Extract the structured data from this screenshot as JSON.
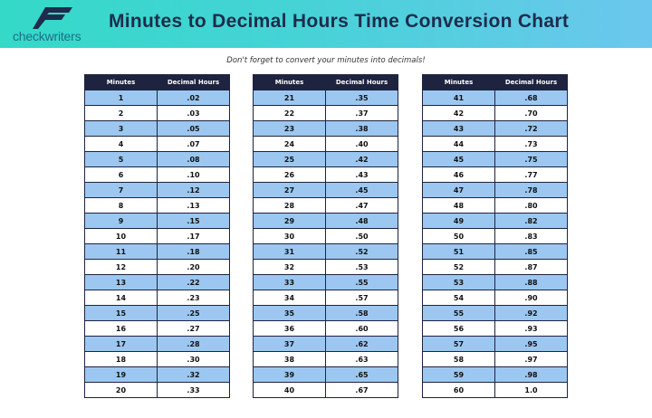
{
  "header": {
    "logo_text": "checkwriters",
    "title": "Minutes to Decimal Hours Time Conversion Chart",
    "colors": {
      "gradient_start": "#34d9c8",
      "gradient_end": "#6cc7ee",
      "title": "#1e2c4c"
    }
  },
  "subtitle": "Don't forget to convert your minutes into decimals!",
  "columns": [
    "Minutes",
    "Decimal Hours"
  ],
  "tables": [
    {
      "rows": [
        [
          "1",
          ".02"
        ],
        [
          "2",
          ".03"
        ],
        [
          "3",
          ".05"
        ],
        [
          "4",
          ".07"
        ],
        [
          "5",
          ".08"
        ],
        [
          "6",
          ".10"
        ],
        [
          "7",
          ".12"
        ],
        [
          "8",
          ".13"
        ],
        [
          "9",
          ".15"
        ],
        [
          "10",
          ".17"
        ],
        [
          "11",
          ".18"
        ],
        [
          "12",
          ".20"
        ],
        [
          "13",
          ".22"
        ],
        [
          "14",
          ".23"
        ],
        [
          "15",
          ".25"
        ],
        [
          "16",
          ".27"
        ],
        [
          "17",
          ".28"
        ],
        [
          "18",
          ".30"
        ],
        [
          "19",
          ".32"
        ],
        [
          "20",
          ".33"
        ]
      ]
    },
    {
      "rows": [
        [
          "21",
          ".35"
        ],
        [
          "22",
          ".37"
        ],
        [
          "23",
          ".38"
        ],
        [
          "24",
          ".40"
        ],
        [
          "25",
          ".42"
        ],
        [
          "26",
          ".43"
        ],
        [
          "27",
          ".45"
        ],
        [
          "28",
          ".47"
        ],
        [
          "29",
          ".48"
        ],
        [
          "30",
          ".50"
        ],
        [
          "31",
          ".52"
        ],
        [
          "32",
          ".53"
        ],
        [
          "33",
          ".55"
        ],
        [
          "34",
          ".57"
        ],
        [
          "35",
          ".58"
        ],
        [
          "36",
          ".60"
        ],
        [
          "37",
          ".62"
        ],
        [
          "38",
          ".63"
        ],
        [
          "39",
          ".65"
        ],
        [
          "40",
          ".67"
        ]
      ]
    },
    {
      "rows": [
        [
          "41",
          ".68"
        ],
        [
          "42",
          ".70"
        ],
        [
          "43",
          ".72"
        ],
        [
          "44",
          ".73"
        ],
        [
          "45",
          ".75"
        ],
        [
          "46",
          ".77"
        ],
        [
          "47",
          ".78"
        ],
        [
          "48",
          ".80"
        ],
        [
          "49",
          ".82"
        ],
        [
          "50",
          ".83"
        ],
        [
          "51",
          ".85"
        ],
        [
          "52",
          ".87"
        ],
        [
          "53",
          ".88"
        ],
        [
          "54",
          ".90"
        ],
        [
          "55",
          ".92"
        ],
        [
          "56",
          ".93"
        ],
        [
          "57",
          ".95"
        ],
        [
          "58",
          ".97"
        ],
        [
          "59",
          ".98"
        ],
        [
          "60",
          "1.0"
        ]
      ]
    }
  ]
}
